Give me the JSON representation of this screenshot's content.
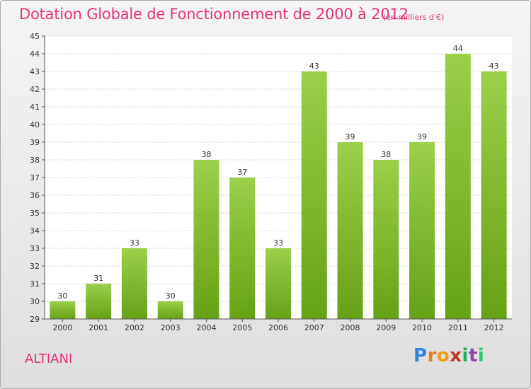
{
  "header": {
    "title": "Dotation Globale de Fonctionnement de 2000 à 2012",
    "unit": "(en milliers d'€)"
  },
  "footer": {
    "commune": "ALTIANI",
    "logo_letters": [
      "P",
      "r",
      "o",
      "x",
      "i",
      "t",
      "i"
    ],
    "logo_colors": [
      "#2e86de",
      "#e67e22",
      "#f39c12",
      "#c0392b",
      "#27ae60",
      "#8e44ad",
      "#2ecc71"
    ]
  },
  "chart_data": {
    "type": "bar",
    "title": "Dotation Globale de Fonctionnement de 2000 à 2012",
    "subtitle": "(en milliers d'€)",
    "categories": [
      "2000",
      "2001",
      "2002",
      "2003",
      "2004",
      "2005",
      "2006",
      "2007",
      "2008",
      "2009",
      "2010",
      "2011",
      "2012"
    ],
    "values": [
      30,
      31,
      33,
      30,
      38,
      37,
      33,
      43,
      39,
      38,
      39,
      44,
      43
    ],
    "ylim": [
      29,
      45
    ],
    "yticks": [
      29,
      30,
      31,
      32,
      33,
      34,
      35,
      36,
      37,
      38,
      39,
      40,
      41,
      42,
      43,
      44,
      45
    ],
    "grid": true,
    "bar_color_top": "#9ccf4a",
    "bar_color_bottom": "#66a116"
  }
}
